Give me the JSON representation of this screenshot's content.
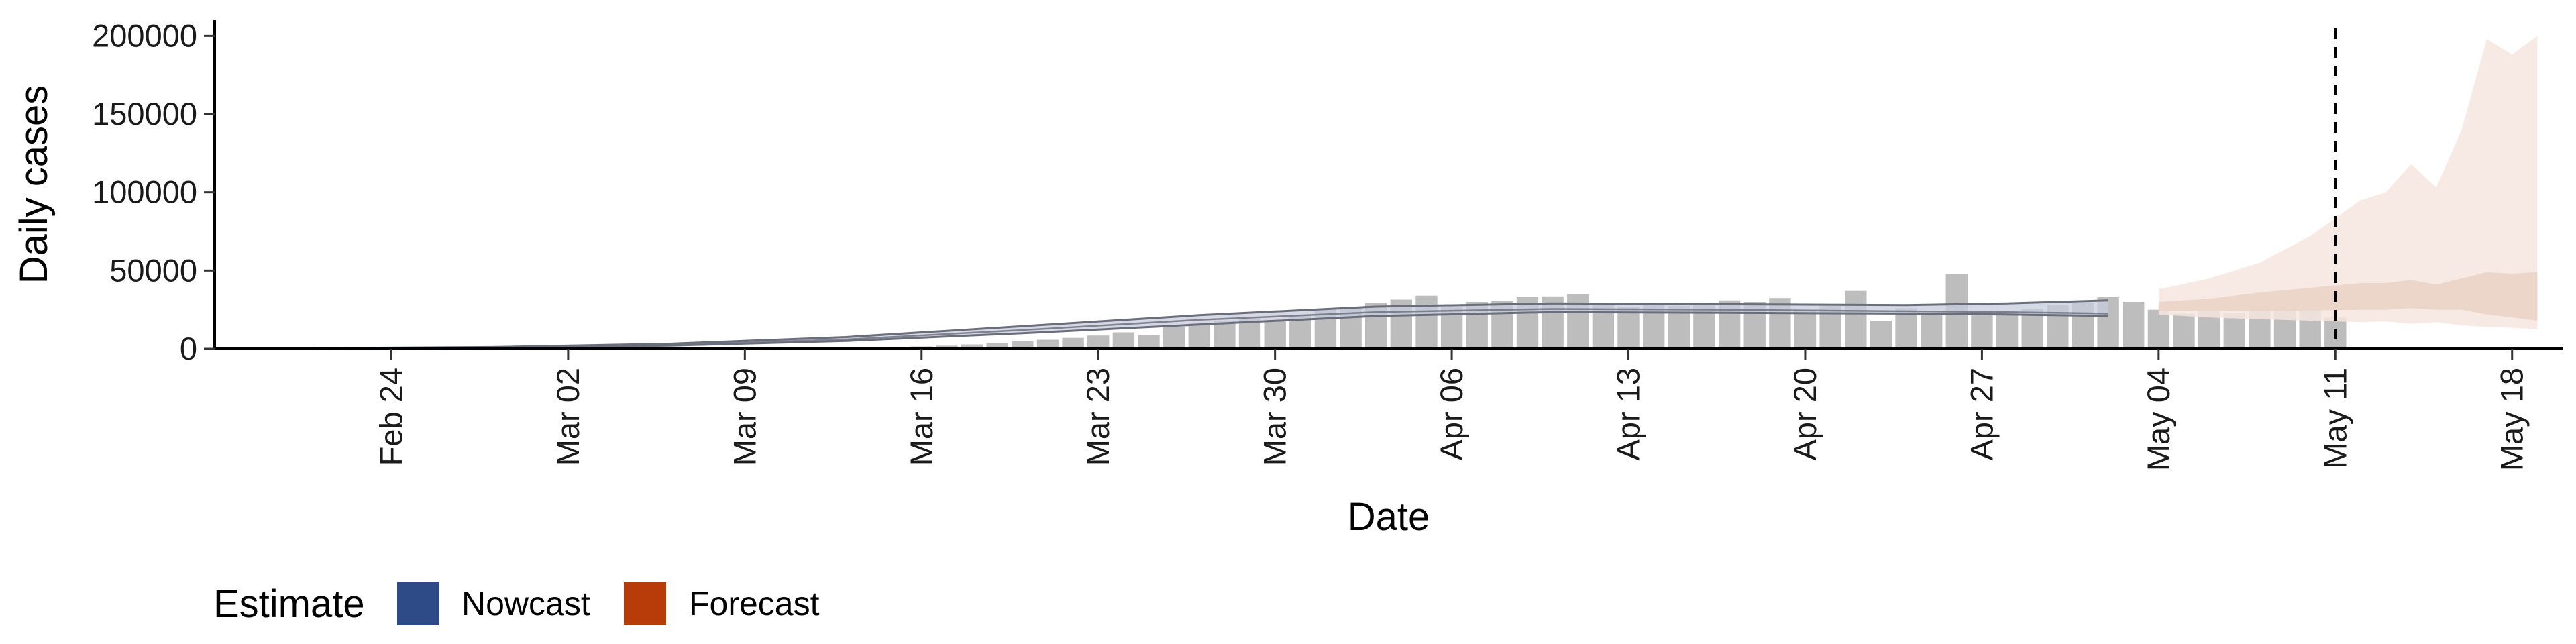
{
  "chart_data": {
    "type": "bar",
    "xlabel": "Date",
    "ylabel": "Daily cases",
    "ylim": [
      0,
      210000
    ],
    "xlim": [
      "2020-02-17",
      "2020-05-20"
    ],
    "y_ticks": [
      0,
      50000,
      100000,
      150000,
      200000
    ],
    "y_tick_labels": [
      "0",
      "50000",
      "100000",
      "150000",
      "200000"
    ],
    "x_ticks": [
      "2020-02-24",
      "2020-03-02",
      "2020-03-09",
      "2020-03-16",
      "2020-03-23",
      "2020-03-30",
      "2020-04-06",
      "2020-04-13",
      "2020-04-20",
      "2020-04-27",
      "2020-05-04",
      "2020-05-11",
      "2020-05-18"
    ],
    "x_tick_labels": [
      "Feb 24",
      "Mar 02",
      "Mar 09",
      "Mar 16",
      "Mar 23",
      "Mar 30",
      "Apr 06",
      "Apr 13",
      "Apr 20",
      "Apr 27",
      "May 04",
      "May 11",
      "May 18"
    ],
    "vline_date": "2020-05-11",
    "grid": false,
    "legend": {
      "title": "Estimate",
      "position": "bottom-left",
      "entries": [
        {
          "label": "Nowcast",
          "color": "#2f4b87"
        },
        {
          "label": "Forecast",
          "color": "#b83c0a"
        }
      ]
    },
    "colors": {
      "bar": "#bdbdbd",
      "nowcast_band": "#c7cbdc",
      "nowcast_line": "#6a6d7a",
      "forecast_outer": "#f6e6df",
      "forecast_inner": "#ead2c6",
      "axis": "#000000",
      "vline": "#000000"
    },
    "observed": {
      "start_date": "2020-03-13",
      "values": [
        300,
        600,
        1000,
        1500,
        2000,
        2800,
        3500,
        4800,
        5800,
        7000,
        8500,
        10500,
        9000,
        14000,
        16500,
        18000,
        19500,
        18500,
        21500,
        25000,
        27000,
        29500,
        31500,
        34000,
        26500,
        30000,
        30500,
        33000,
        33500,
        35000,
        28000,
        27000,
        28000,
        27500,
        29000,
        31000,
        30000,
        32500,
        25000,
        27500,
        37000,
        18000,
        26000,
        22000,
        48000,
        24000,
        24000,
        25500,
        28000,
        29500,
        33000,
        30000,
        25000,
        22500,
        24000,
        23000,
        28000,
        27000,
        25500,
        20000
      ]
    },
    "nowcast": {
      "start_date": "2020-02-21",
      "end_date": "2020-05-02",
      "median": [
        [
          0,
          300
        ],
        [
          7,
          800
        ],
        [
          14,
          2500
        ],
        [
          21,
          6000
        ],
        [
          28,
          12000
        ],
        [
          35,
          18500
        ],
        [
          42,
          23500
        ],
        [
          49,
          25500
        ],
        [
          56,
          25000
        ],
        [
          63,
          24000
        ],
        [
          67,
          23500
        ],
        [
          71,
          22500
        ]
      ],
      "lower": [
        [
          0,
          200
        ],
        [
          7,
          600
        ],
        [
          14,
          2000
        ],
        [
          21,
          5000
        ],
        [
          28,
          10000
        ],
        [
          35,
          15500
        ],
        [
          42,
          21000
        ],
        [
          49,
          23500
        ],
        [
          56,
          23000
        ],
        [
          63,
          22500
        ],
        [
          67,
          22000
        ],
        [
          71,
          21000
        ]
      ],
      "upper": [
        [
          0,
          400
        ],
        [
          7,
          1100
        ],
        [
          14,
          3200
        ],
        [
          21,
          7500
        ],
        [
          28,
          14500
        ],
        [
          35,
          21500
        ],
        [
          42,
          27000
        ],
        [
          49,
          29000
        ],
        [
          56,
          28500
        ],
        [
          63,
          28000
        ],
        [
          67,
          29000
        ],
        [
          71,
          31000
        ]
      ]
    },
    "forecast": {
      "start_date": "2020-05-04",
      "outer": {
        "upper": [
          [
            0,
            38000
          ],
          [
            2,
            45000
          ],
          [
            4,
            55000
          ],
          [
            6,
            72000
          ],
          [
            8,
            95000
          ],
          [
            9,
            100000
          ],
          [
            10,
            118000
          ],
          [
            11,
            103000
          ],
          [
            12,
            140000
          ],
          [
            13,
            198000
          ],
          [
            14,
            188000
          ],
          [
            15,
            200000
          ]
        ],
        "lower": [
          [
            0,
            22000
          ],
          [
            2,
            20000
          ],
          [
            4,
            19000
          ],
          [
            6,
            18000
          ],
          [
            8,
            17000
          ],
          [
            9,
            17500
          ],
          [
            10,
            16000
          ],
          [
            11,
            17000
          ],
          [
            12,
            15000
          ],
          [
            13,
            14000
          ],
          [
            14,
            13500
          ],
          [
            15,
            12500
          ]
        ]
      },
      "inner": {
        "upper": [
          [
            0,
            30000
          ],
          [
            2,
            32000
          ],
          [
            4,
            36000
          ],
          [
            6,
            39000
          ],
          [
            8,
            42000
          ],
          [
            9,
            42000
          ],
          [
            10,
            44000
          ],
          [
            11,
            41000
          ],
          [
            12,
            45000
          ],
          [
            13,
            49000
          ],
          [
            14,
            48000
          ],
          [
            15,
            49000
          ]
        ],
        "lower": [
          [
            0,
            24000
          ],
          [
            2,
            24000
          ],
          [
            4,
            24000
          ],
          [
            6,
            24500
          ],
          [
            8,
            25000
          ],
          [
            9,
            25000
          ],
          [
            10,
            26000
          ],
          [
            11,
            25000
          ],
          [
            12,
            25000
          ],
          [
            13,
            22000
          ],
          [
            14,
            20000
          ],
          [
            15,
            18000
          ]
        ]
      }
    }
  }
}
